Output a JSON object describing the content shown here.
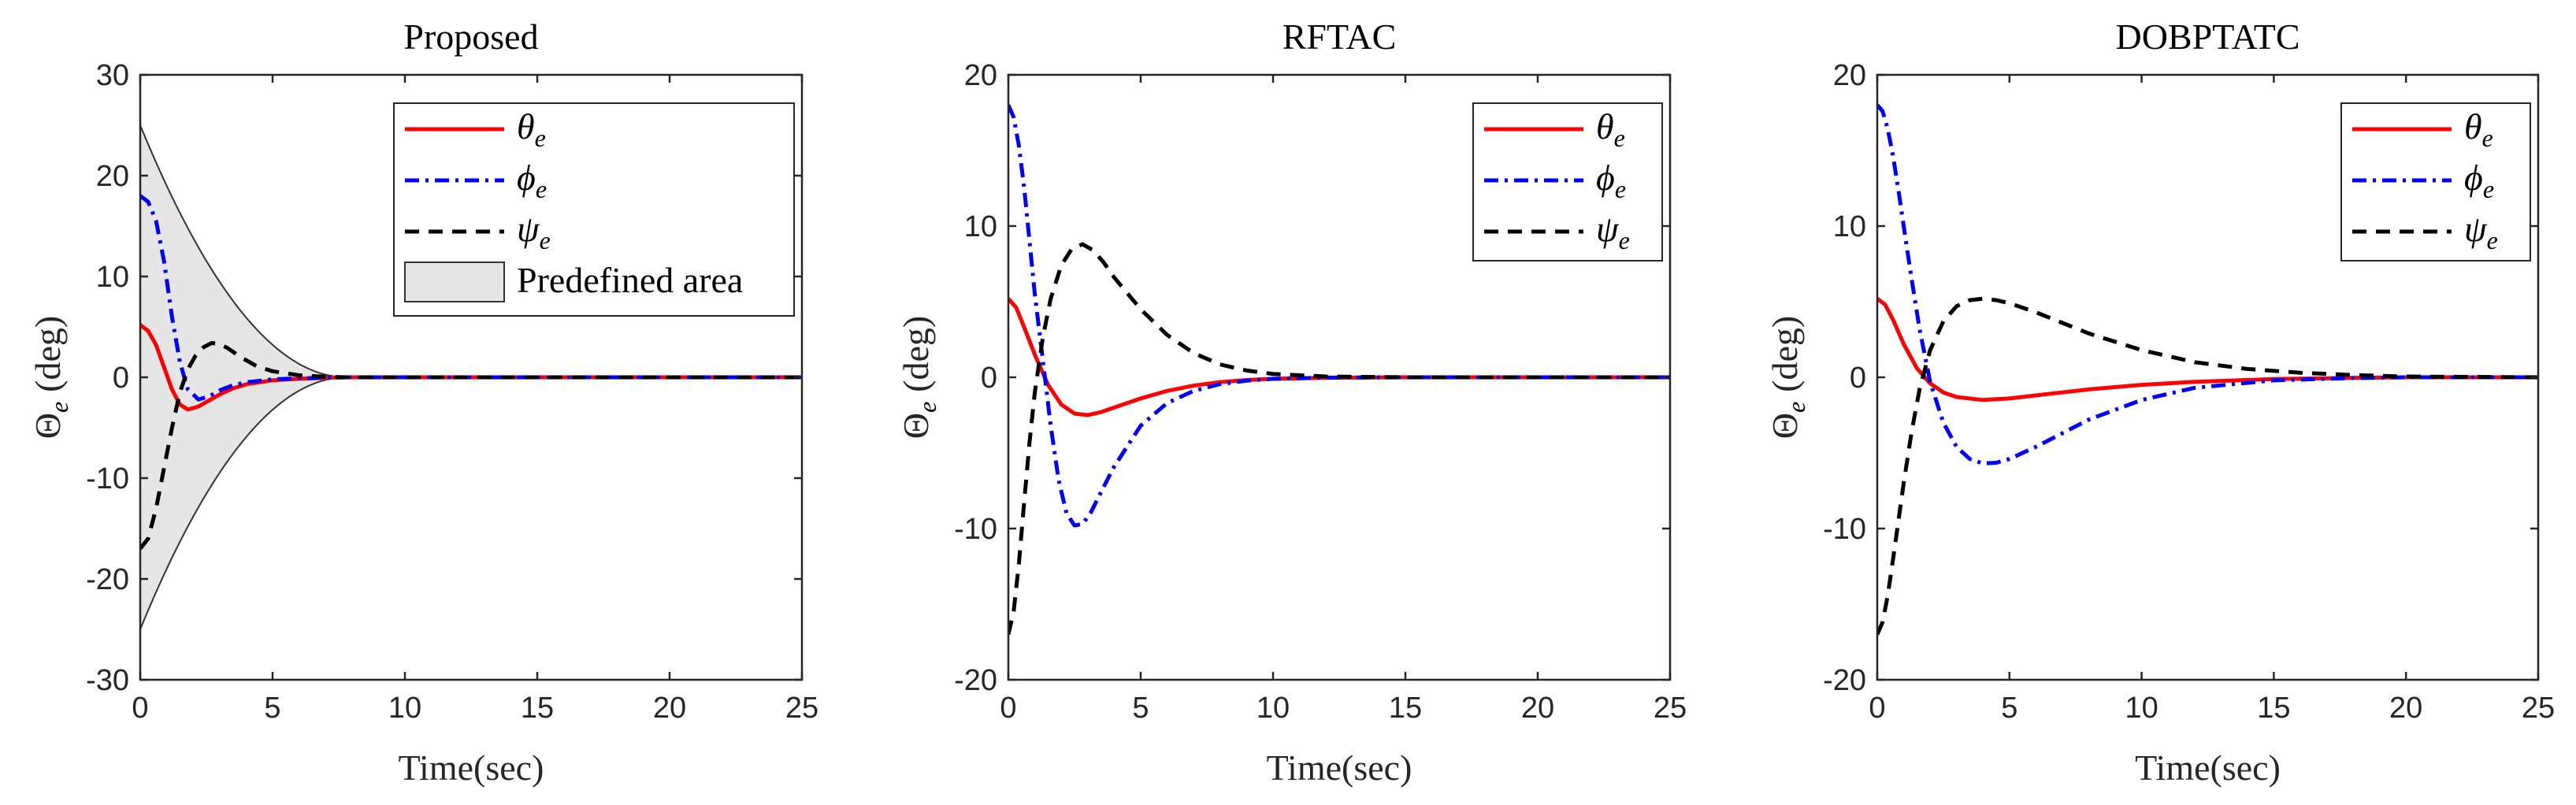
{
  "chart_data": [
    {
      "type": "line",
      "title": "Proposed",
      "xlabel": "Time(sec)",
      "ylabel": {
        "symbol": "Θ",
        "sub": "e",
        "unit": "(deg)"
      },
      "xlim": [
        0,
        25
      ],
      "ylim": [
        -30,
        30
      ],
      "xticks": [
        "0",
        "5",
        "10",
        "15",
        "20",
        "25"
      ],
      "yticks": [
        "30",
        "20",
        "10",
        "0",
        "-10",
        "-20",
        "-30"
      ],
      "legend_position": "top-right",
      "predefined_area": {
        "label": "Predefined area",
        "initial_bound": 25,
        "converge_time": 7.8,
        "fill": "#e6e6e6"
      },
      "series": [
        {
          "name": "θ",
          "sub": "e",
          "style": "solid",
          "color": "#ff0000",
          "x": [
            0,
            0.3,
            0.6,
            0.9,
            1.2,
            1.5,
            1.8,
            2.2,
            2.6,
            3.0,
            3.5,
            4.0,
            5.0,
            6.0,
            7.0,
            7.8,
            10,
            15,
            20,
            25
          ],
          "y": [
            5.2,
            4.6,
            3.2,
            1.0,
            -1.2,
            -2.7,
            -3.2,
            -2.9,
            -2.3,
            -1.7,
            -1.1,
            -0.7,
            -0.3,
            -0.15,
            -0.05,
            0,
            0,
            0,
            0,
            0
          ]
        },
        {
          "name": "ϕ",
          "sub": "e",
          "style": "dashdot",
          "color": "#0000ff",
          "x": [
            0,
            0.3,
            0.6,
            0.9,
            1.2,
            1.5,
            1.8,
            2.2,
            2.6,
            3.0,
            3.5,
            4.0,
            5.0,
            6.0,
            7.0,
            7.8,
            10,
            15,
            20,
            25
          ],
          "y": [
            18,
            17.4,
            15.5,
            11.5,
            6.0,
            1.5,
            -1.2,
            -2.2,
            -1.9,
            -1.3,
            -0.8,
            -0.5,
            -0.2,
            -0.1,
            -0.05,
            0,
            0,
            0,
            0,
            0
          ]
        },
        {
          "name": "ψ",
          "sub": "e",
          "style": "dashed",
          "color": "#000000",
          "x": [
            0,
            0.3,
            0.6,
            0.9,
            1.2,
            1.5,
            1.8,
            2.1,
            2.4,
            2.7,
            3.0,
            3.3,
            3.8,
            4.4,
            5.0,
            6.0,
            7.0,
            7.8,
            10,
            15,
            20,
            25
          ],
          "y": [
            -17,
            -16,
            -13,
            -9,
            -5,
            -1.5,
            0.8,
            2.2,
            3.0,
            3.4,
            3.3,
            2.9,
            2.0,
            1.1,
            0.6,
            0.2,
            0.05,
            0,
            0,
            0,
            0,
            0
          ]
        }
      ]
    },
    {
      "type": "line",
      "title": "RFTAC",
      "xlabel": "Time(sec)",
      "ylabel": {
        "symbol": "Θ",
        "sub": "e",
        "unit": "(deg)"
      },
      "xlim": [
        0,
        25
      ],
      "ylim": [
        -20,
        20
      ],
      "xticks": [
        "0",
        "5",
        "10",
        "15",
        "20",
        "25"
      ],
      "yticks": [
        "20",
        "10",
        "0",
        "-10",
        "-20"
      ],
      "legend_position": "top-right",
      "series": [
        {
          "name": "θ",
          "sub": "e",
          "style": "solid",
          "color": "#ff0000",
          "x": [
            0,
            0.3,
            0.6,
            1.0,
            1.5,
            2.0,
            2.5,
            3.0,
            3.5,
            4.0,
            5.0,
            6.0,
            7.0,
            8.0,
            9.0,
            10,
            12,
            15,
            20,
            25
          ],
          "y": [
            5.2,
            4.6,
            3.3,
            1.5,
            -0.5,
            -1.8,
            -2.4,
            -2.5,
            -2.3,
            -2.0,
            -1.4,
            -0.9,
            -0.55,
            -0.32,
            -0.18,
            -0.1,
            -0.03,
            0,
            0,
            0
          ]
        },
        {
          "name": "ϕ",
          "sub": "e",
          "style": "dashdot",
          "color": "#0000ff",
          "x": [
            0,
            0.2,
            0.4,
            0.6,
            0.8,
            1.0,
            1.3,
            1.6,
            1.9,
            2.2,
            2.5,
            2.8,
            3.1,
            3.5,
            4.0,
            5.0,
            6.0,
            7.0,
            8.0,
            9.0,
            10,
            12,
            15,
            20,
            25
          ],
          "y": [
            18,
            17.2,
            15.3,
            12.5,
            9.0,
            5.5,
            1.2,
            -3.2,
            -6.8,
            -9.0,
            -9.8,
            -9.7,
            -9.0,
            -7.6,
            -5.9,
            -3.2,
            -1.7,
            -0.9,
            -0.45,
            -0.22,
            -0.1,
            -0.02,
            0,
            0,
            0
          ]
        },
        {
          "name": "ψ",
          "sub": "e",
          "style": "dashed",
          "color": "#000000",
          "x": [
            0,
            0.2,
            0.4,
            0.6,
            0.8,
            1.0,
            1.3,
            1.6,
            2.0,
            2.4,
            2.8,
            3.2,
            3.6,
            4.0,
            5.0,
            6.0,
            7.0,
            8.0,
            9.0,
            10,
            12,
            15,
            20,
            25
          ],
          "y": [
            -17,
            -15.5,
            -12.3,
            -8.2,
            -4.3,
            -1.0,
            2.6,
            5.2,
            7.4,
            8.5,
            8.8,
            8.4,
            7.6,
            6.6,
            4.5,
            2.8,
            1.6,
            0.85,
            0.45,
            0.22,
            0.05,
            0,
            0,
            0
          ]
        }
      ]
    },
    {
      "type": "line",
      "title": "DOBPTATC",
      "xlabel": "Time(sec)",
      "ylabel": {
        "symbol": "Θ",
        "sub": "e",
        "unit": "(deg)"
      },
      "xlim": [
        0,
        25
      ],
      "ylim": [
        -20,
        20
      ],
      "xticks": [
        "0",
        "5",
        "10",
        "15",
        "20",
        "25"
      ],
      "yticks": [
        "20",
        "10",
        "0",
        "-10",
        "-20"
      ],
      "legend_position": "top-right",
      "series": [
        {
          "name": "θ",
          "sub": "e",
          "style": "solid",
          "color": "#ff0000",
          "x": [
            0,
            0.3,
            0.6,
            1.0,
            1.5,
            2.0,
            2.5,
            3.0,
            4.0,
            5.0,
            6.0,
            7.0,
            8.0,
            10,
            12,
            15,
            18,
            20,
            25
          ],
          "y": [
            5.2,
            4.8,
            3.8,
            2.2,
            0.6,
            -0.4,
            -1.0,
            -1.3,
            -1.5,
            -1.4,
            -1.2,
            -1.0,
            -0.8,
            -0.5,
            -0.3,
            -0.12,
            -0.04,
            0,
            0
          ]
        },
        {
          "name": "ϕ",
          "sub": "e",
          "style": "dashdot",
          "color": "#0000ff",
          "x": [
            0,
            0.2,
            0.4,
            0.6,
            0.8,
            1.0,
            1.3,
            1.6,
            2.0,
            2.5,
            3.0,
            3.5,
            4.0,
            4.5,
            5.0,
            6.0,
            7.0,
            8.0,
            10,
            12,
            15,
            18,
            20,
            25
          ],
          "y": [
            18,
            17.6,
            16.4,
            14.6,
            12.4,
            10.0,
            6.5,
            3.2,
            -0.3,
            -3.0,
            -4.6,
            -5.4,
            -5.7,
            -5.65,
            -5.4,
            -4.6,
            -3.7,
            -2.8,
            -1.5,
            -0.7,
            -0.2,
            -0.05,
            0,
            0
          ]
        },
        {
          "name": "ψ",
          "sub": "e",
          "style": "dashed",
          "color": "#000000",
          "x": [
            0,
            0.2,
            0.4,
            0.6,
            0.8,
            1.0,
            1.3,
            1.6,
            2.0,
            2.5,
            3.0,
            3.5,
            4.0,
            4.5,
            5.0,
            6.0,
            7.0,
            8.0,
            10,
            12,
            14,
            16,
            18,
            20,
            25
          ],
          "y": [
            -17,
            -16.2,
            -14.4,
            -12.0,
            -9.5,
            -7.0,
            -3.6,
            -0.8,
            1.8,
            3.7,
            4.7,
            5.1,
            5.2,
            5.1,
            4.9,
            4.3,
            3.6,
            2.9,
            1.8,
            1.0,
            0.55,
            0.3,
            0.15,
            0.05,
            0
          ]
        }
      ]
    }
  ],
  "legend_extra_label": "Predefined area"
}
